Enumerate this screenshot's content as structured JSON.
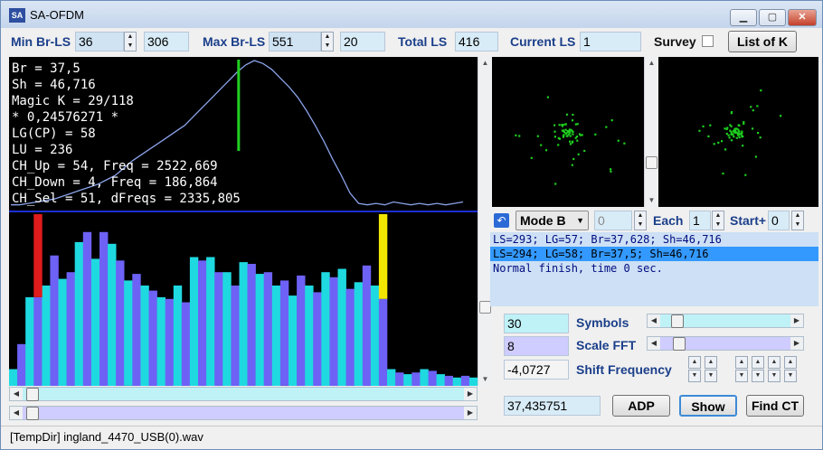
{
  "window": {
    "title": "SA-OFDM",
    "icon": "SA",
    "minimize": "▁",
    "maximize": "▢",
    "close": "✕"
  },
  "toolbar": {
    "min_label": "Min Br-LS",
    "min_value": "36",
    "min_second": "306",
    "max_label": "Max Br-LS",
    "max_value": "551",
    "max_second": "20",
    "total_label": "Total LS",
    "total_value": "416",
    "current_label": "Current LS",
    "current_value": "1",
    "survey_label": "Survey",
    "listk_button": "List of K"
  },
  "info_lines": [
    "Br = 37,5",
    "Sh = 46,716",
    "Magic K = 29/118",
    "* 0,24576271 *",
    "LG(CP) = 58",
    "LU = 236",
    "CH_Up = 54, Freq = 2522,669",
    "CH_Down = 4, Freq = 186,864",
    "CH_Sel = 51, dFreqs = 2335,805"
  ],
  "controls": {
    "mode_value": "Mode B",
    "mode_num": "0",
    "each_label": "Each",
    "each_value": "1",
    "start_label": "Start+",
    "start_value": "0"
  },
  "log": [
    "LS=293; LG=57; Br=37,628; Sh=46,716",
    "LS=294; LG=58; Br=37,5; Sh=46,716",
    "Normal finish, time 0 sec."
  ],
  "params": {
    "symbols_value": "30",
    "symbols_label": "Symbols",
    "scale_value": "8",
    "scale_label": "Scale FFT",
    "shift_value": "-4,0727",
    "shift_label": "Shift Frequency"
  },
  "bottom": {
    "coord_value": "37,435751",
    "adp_button": "ADP",
    "show_button": "Show",
    "findct_button": "Find CT"
  },
  "status": {
    "text": "[TempDir] ingland_4470_USB(0).wav"
  },
  "colors": {
    "cyan": "#1fd9e0",
    "purple": "#6d62f5",
    "red": "#e01b1b",
    "yellow": "#f2e600",
    "curve": "#8aa2e8",
    "marker": "#22d022"
  },
  "spectrum": {
    "bars": [
      0.1,
      0.25,
      0.53,
      0.53,
      0.6,
      0.78,
      0.64,
      0.68,
      0.86,
      0.92,
      0.76,
      0.92,
      0.85,
      0.75,
      0.63,
      0.67,
      0.6,
      0.57,
      0.53,
      0.52,
      0.6,
      0.5,
      0.77,
      0.75,
      0.77,
      0.68,
      0.68,
      0.6,
      0.74,
      0.73,
      0.67,
      0.68,
      0.6,
      0.63,
      0.54,
      0.66,
      0.6,
      0.56,
      0.68,
      0.65,
      0.7,
      0.58,
      0.62,
      0.72,
      0.6,
      0.52,
      0.1,
      0.08,
      0.07,
      0.08,
      0.1,
      0.09,
      0.07,
      0.06,
      0.05,
      0.06,
      0.05
    ],
    "red_marker_index": 3,
    "yellow_marker_index": 45,
    "curve": [
      0.02,
      0.02,
      0.03,
      0.04,
      0.05,
      0.06,
      0.08,
      0.1,
      0.12,
      0.14,
      0.16,
      0.19,
      0.22,
      0.27,
      0.32,
      0.36,
      0.4,
      0.44,
      0.48,
      0.52,
      0.56,
      0.62,
      0.68,
      0.74,
      0.8,
      0.86,
      0.92,
      0.97,
      1.0,
      0.98,
      0.94,
      0.88,
      0.82,
      0.75,
      0.66,
      0.56,
      0.45,
      0.33,
      0.22,
      0.1,
      0.03,
      0.02,
      0.03,
      0.02,
      0.04,
      0.03,
      0.02,
      0.03,
      0.02,
      0.03,
      0.02,
      0.03,
      0.04
    ],
    "green_marker_position": 0.49
  }
}
